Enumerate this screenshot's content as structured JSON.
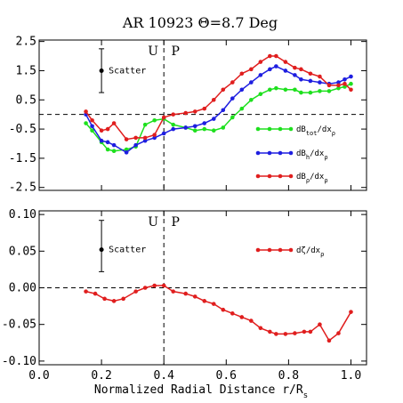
{
  "chart_data": [
    {
      "type": "line",
      "title": "AR 10923 Θ=8.7 Deg",
      "xlim": [
        0.0,
        1.05
      ],
      "ylim": [
        -2.6,
        2.55
      ],
      "yticks": [
        2.5,
        1.5,
        0.5,
        -0.5,
        -1.5,
        -2.5
      ],
      "ytick_labels": [
        "2.5",
        "1.5",
        "0.5",
        "-0.5",
        "-1.5",
        "-2.5"
      ],
      "zero_line": 0.0,
      "boundary_x": 0.4,
      "boundary_labels": [
        "U",
        "P"
      ],
      "scatter_label": "Scatter",
      "scatter_bar": {
        "x": 0.2,
        "y": 1.5,
        "low": 0.75,
        "high": 2.25
      },
      "legend_position": "right",
      "series": [
        {
          "name": "dB_tot/dx_ρ",
          "label_main": "dB",
          "label_sub": "tot",
          "label_tail": "/dx",
          "label_tail_sub": "ρ",
          "color": "#1ee01e",
          "x": [
            0.15,
            0.17,
            0.2,
            0.22,
            0.24,
            0.28,
            0.31,
            0.34,
            0.37,
            0.4,
            0.43,
            0.47,
            0.5,
            0.53,
            0.56,
            0.59,
            0.62,
            0.65,
            0.68,
            0.71,
            0.74,
            0.76,
            0.79,
            0.82,
            0.84,
            0.87,
            0.9,
            0.93,
            0.96,
            0.98,
            1.0
          ],
          "y": [
            -0.3,
            -0.55,
            -0.95,
            -1.2,
            -1.25,
            -1.2,
            -1.1,
            -0.35,
            -0.2,
            -0.15,
            -0.35,
            -0.45,
            -0.55,
            -0.5,
            -0.55,
            -0.45,
            -0.1,
            0.2,
            0.5,
            0.7,
            0.85,
            0.9,
            0.85,
            0.85,
            0.75,
            0.75,
            0.8,
            0.8,
            0.9,
            0.95,
            1.05
          ]
        },
        {
          "name": "dB_h/dx_ρ",
          "label_main": "dB",
          "label_sub": "h",
          "label_tail": "/dx",
          "label_tail_sub": "ρ",
          "color": "#1e1ee0",
          "x": [
            0.15,
            0.17,
            0.2,
            0.22,
            0.24,
            0.28,
            0.31,
            0.34,
            0.37,
            0.4,
            0.43,
            0.47,
            0.5,
            0.53,
            0.56,
            0.59,
            0.62,
            0.65,
            0.68,
            0.71,
            0.74,
            0.76,
            0.79,
            0.82,
            0.84,
            0.87,
            0.9,
            0.93,
            0.96,
            0.98,
            1.0
          ],
          "y": [
            0.0,
            -0.4,
            -0.9,
            -0.95,
            -1.05,
            -1.3,
            -1.05,
            -0.9,
            -0.8,
            -0.65,
            -0.5,
            -0.45,
            -0.4,
            -0.3,
            -0.15,
            0.15,
            0.55,
            0.85,
            1.1,
            1.35,
            1.55,
            1.65,
            1.5,
            1.35,
            1.2,
            1.15,
            1.1,
            1.05,
            1.1,
            1.2,
            1.3
          ]
        },
        {
          "name": "dB_ρ/dx_ρ",
          "label_main": "dB",
          "label_sub": "ρ",
          "label_tail": "/dx",
          "label_tail_sub": "ρ",
          "color": "#e01e1e",
          "x": [
            0.15,
            0.17,
            0.2,
            0.22,
            0.24,
            0.28,
            0.31,
            0.34,
            0.37,
            0.4,
            0.43,
            0.47,
            0.5,
            0.53,
            0.56,
            0.59,
            0.62,
            0.65,
            0.68,
            0.71,
            0.74,
            0.76,
            0.79,
            0.82,
            0.84,
            0.87,
            0.9,
            0.93,
            0.96,
            0.98,
            1.0
          ],
          "y": [
            0.1,
            -0.2,
            -0.55,
            -0.5,
            -0.3,
            -0.85,
            -0.8,
            -0.8,
            -0.7,
            -0.1,
            0.0,
            0.05,
            0.1,
            0.2,
            0.5,
            0.85,
            1.1,
            1.4,
            1.55,
            1.8,
            2.0,
            2.0,
            1.8,
            1.6,
            1.55,
            1.4,
            1.3,
            1.0,
            1.0,
            1.05,
            0.85
          ]
        }
      ]
    },
    {
      "type": "line",
      "xlabel_main": "Normalized Radial Distance r/R",
      "xlabel_sub": "s",
      "xlim": [
        0.0,
        1.05
      ],
      "ylim": [
        -0.105,
        0.105
      ],
      "xticks": [
        0.0,
        0.2,
        0.4,
        0.6,
        0.8,
        1.0
      ],
      "xtick_labels": [
        "0.0",
        "0.2",
        "0.4",
        "0.6",
        "0.8",
        "1.0"
      ],
      "yticks": [
        0.1,
        0.05,
        0.0,
        -0.05,
        -0.1
      ],
      "ytick_labels": [
        "0.10",
        "0.05",
        "0.00",
        "-0.05",
        "-0.10"
      ],
      "zero_line": 0.0,
      "boundary_x": 0.4,
      "boundary_labels": [
        "U",
        "P"
      ],
      "scatter_label": "Scatter",
      "scatter_bar": {
        "x": 0.2,
        "y": 0.052,
        "low": 0.022,
        "high": 0.092
      },
      "legend_position": "upper-right",
      "series": [
        {
          "name": "dζ/dx_ρ",
          "label_main": "dζ",
          "label_sub": "",
          "label_tail": "/dx",
          "label_tail_sub": "ρ",
          "color": "#e01e1e",
          "x": [
            0.15,
            0.18,
            0.21,
            0.24,
            0.27,
            0.31,
            0.34,
            0.37,
            0.4,
            0.43,
            0.47,
            0.5,
            0.53,
            0.56,
            0.59,
            0.62,
            0.65,
            0.68,
            0.71,
            0.74,
            0.76,
            0.79,
            0.82,
            0.85,
            0.87,
            0.9,
            0.93,
            0.96,
            1.0
          ],
          "y": [
            -0.005,
            -0.008,
            -0.015,
            -0.018,
            -0.015,
            -0.005,
            0.0,
            0.003,
            0.003,
            -0.005,
            -0.008,
            -0.012,
            -0.018,
            -0.022,
            -0.03,
            -0.035,
            -0.04,
            -0.045,
            -0.055,
            -0.06,
            -0.063,
            -0.063,
            -0.062,
            -0.06,
            -0.06,
            -0.05,
            -0.072,
            -0.062,
            -0.033
          ]
        }
      ]
    }
  ]
}
